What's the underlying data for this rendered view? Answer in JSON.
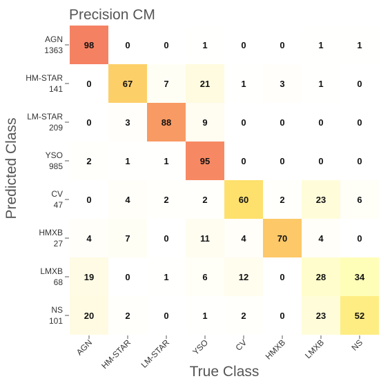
{
  "chart_data": {
    "type": "heatmap",
    "title": "Precision CM",
    "xlabel": "True Class",
    "ylabel": "Predicted Class",
    "x_categories": [
      "AGN",
      "HM-STAR",
      "LM-STAR",
      "YSO",
      "CV",
      "HMXB",
      "LMXB",
      "NS"
    ],
    "y_categories": [
      "AGN",
      "HM-STAR",
      "LM-STAR",
      "YSO",
      "CV",
      "HMXB",
      "LMXB",
      "NS"
    ],
    "y_counts": [
      "1363",
      "141",
      "209",
      "985",
      "47",
      "27",
      "68",
      "101"
    ],
    "values": [
      [
        98,
        0,
        0,
        1,
        0,
        0,
        1,
        1
      ],
      [
        0,
        67,
        7,
        21,
        1,
        3,
        1,
        0
      ],
      [
        0,
        3,
        88,
        9,
        0,
        0,
        0,
        0
      ],
      [
        2,
        1,
        1,
        95,
        0,
        0,
        0,
        0
      ],
      [
        0,
        4,
        2,
        2,
        60,
        2,
        23,
        6
      ],
      [
        4,
        7,
        0,
        11,
        4,
        70,
        4,
        0
      ],
      [
        19,
        0,
        1,
        6,
        12,
        0,
        28,
        34
      ],
      [
        20,
        2,
        0,
        1,
        2,
        0,
        23,
        52
      ]
    ],
    "value_range": [
      0,
      100
    ],
    "colormap": [
      "#ffffff",
      "#fffbe3",
      "#ffffa6",
      "#fde16c",
      "#fbae64",
      "#f47c63"
    ],
    "grid": false
  }
}
